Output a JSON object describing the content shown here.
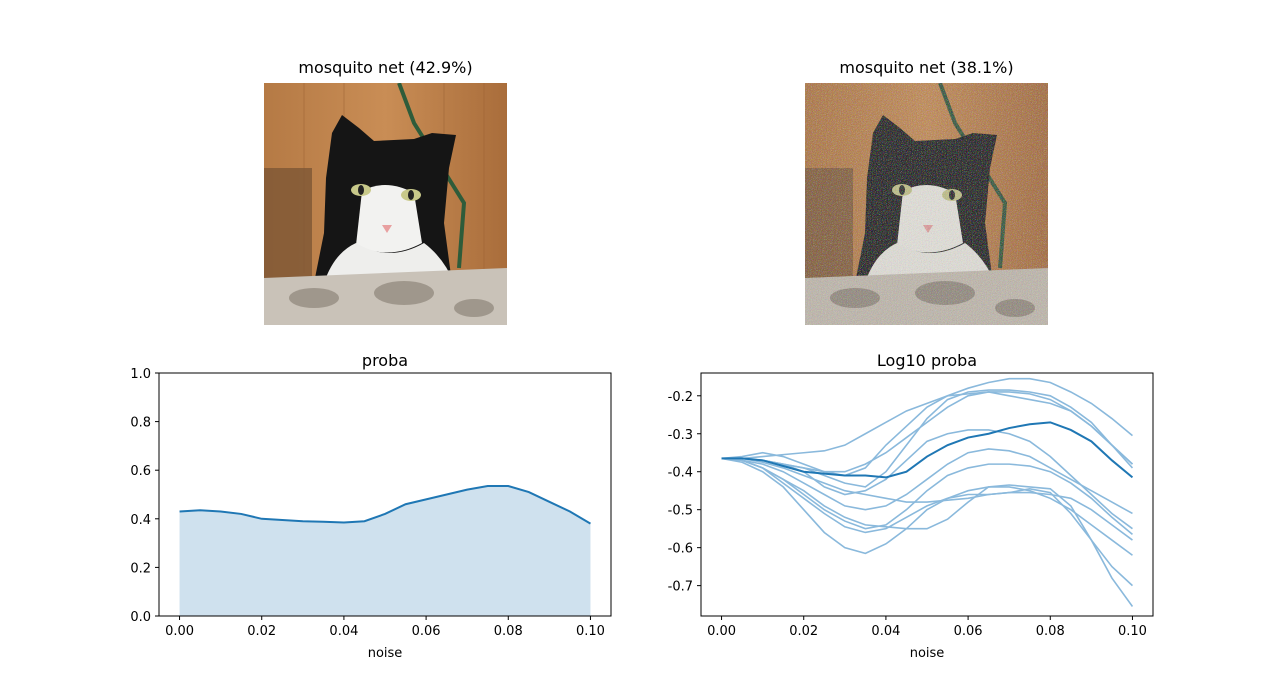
{
  "images": [
    {
      "title": "mosquito net (42.9%)",
      "noisy": false
    },
    {
      "title": "mosquito net (38.1%)",
      "noisy": true
    }
  ],
  "colors": {
    "line": "#1f77b4",
    "fill": "#cfe1ee",
    "light_line": "#8ab9dc"
  },
  "chart_data": [
    {
      "type": "area",
      "title": "proba",
      "xlabel": "noise",
      "ylabel": "",
      "xlim": [
        -0.005,
        0.105
      ],
      "ylim": [
        0.0,
        1.0
      ],
      "xticks": [
        "0.00",
        "0.02",
        "0.04",
        "0.06",
        "0.08",
        "0.10"
      ],
      "yticks": [
        "0.0",
        "0.2",
        "0.4",
        "0.6",
        "0.8",
        "1.0"
      ],
      "x": [
        0.0,
        0.005,
        0.01,
        0.015,
        0.02,
        0.025,
        0.03,
        0.035,
        0.04,
        0.045,
        0.05,
        0.055,
        0.06,
        0.065,
        0.07,
        0.075,
        0.08,
        0.085,
        0.09,
        0.095,
        0.1
      ],
      "series": [
        {
          "values": [
            0.43,
            0.435,
            0.43,
            0.42,
            0.4,
            0.395,
            0.39,
            0.388,
            0.385,
            0.39,
            0.42,
            0.46,
            0.48,
            0.5,
            0.52,
            0.535,
            0.535,
            0.51,
            0.47,
            0.43,
            0.38
          ]
        }
      ]
    },
    {
      "type": "line",
      "title": "Log10 proba",
      "xlabel": "noise",
      "ylabel": "",
      "xlim": [
        -0.005,
        0.105
      ],
      "ylim": [
        -0.78,
        -0.14
      ],
      "xticks": [
        "0.00",
        "0.02",
        "0.04",
        "0.06",
        "0.08",
        "0.10"
      ],
      "yticks": [
        "-0.2",
        "-0.3",
        "-0.4",
        "-0.5",
        "-0.6",
        "-0.7"
      ],
      "x": [
        0.0,
        0.005,
        0.01,
        0.015,
        0.02,
        0.025,
        0.03,
        0.035,
        0.04,
        0.045,
        0.05,
        0.055,
        0.06,
        0.065,
        0.07,
        0.075,
        0.08,
        0.085,
        0.09,
        0.095,
        0.1
      ],
      "mean": [
        -0.365,
        -0.365,
        -0.37,
        -0.385,
        -0.4,
        -0.405,
        -0.41,
        -0.41,
        -0.415,
        -0.4,
        -0.36,
        -0.33,
        -0.31,
        -0.3,
        -0.285,
        -0.275,
        -0.27,
        -0.29,
        -0.32,
        -0.37,
        -0.415
      ],
      "series": [
        {
          "values": [
            -0.365,
            -0.36,
            -0.35,
            -0.36,
            -0.38,
            -0.4,
            -0.41,
            -0.39,
            -0.33,
            -0.28,
            -0.23,
            -0.2,
            -0.18,
            -0.165,
            -0.155,
            -0.155,
            -0.165,
            -0.19,
            -0.22,
            -0.26,
            -0.305
          ]
        },
        {
          "values": [
            -0.365,
            -0.365,
            -0.37,
            -0.38,
            -0.39,
            -0.41,
            -0.43,
            -0.44,
            -0.4,
            -0.33,
            -0.26,
            -0.21,
            -0.19,
            -0.185,
            -0.185,
            -0.19,
            -0.2,
            -0.23,
            -0.27,
            -0.33,
            -0.38
          ]
        },
        {
          "values": [
            -0.365,
            -0.365,
            -0.36,
            -0.355,
            -0.35,
            -0.345,
            -0.33,
            -0.3,
            -0.27,
            -0.24,
            -0.22,
            -0.2,
            -0.195,
            -0.19,
            -0.19,
            -0.195,
            -0.21,
            -0.24,
            -0.28,
            -0.33,
            -0.39
          ]
        },
        {
          "values": [
            -0.365,
            -0.365,
            -0.37,
            -0.38,
            -0.39,
            -0.4,
            -0.4,
            -0.38,
            -0.35,
            -0.31,
            -0.27,
            -0.23,
            -0.2,
            -0.19,
            -0.2,
            -0.21,
            -0.22,
            -0.24,
            -0.28,
            -0.33,
            -0.38
          ]
        },
        {
          "values": [
            -0.365,
            -0.365,
            -0.37,
            -0.38,
            -0.4,
            -0.44,
            -0.46,
            -0.45,
            -0.42,
            -0.37,
            -0.32,
            -0.3,
            -0.29,
            -0.29,
            -0.3,
            -0.32,
            -0.36,
            -0.41,
            -0.46,
            -0.51,
            -0.55
          ]
        },
        {
          "values": [
            -0.365,
            -0.37,
            -0.38,
            -0.4,
            -0.43,
            -0.46,
            -0.49,
            -0.5,
            -0.49,
            -0.46,
            -0.42,
            -0.38,
            -0.35,
            -0.34,
            -0.345,
            -0.36,
            -0.39,
            -0.42,
            -0.45,
            -0.48,
            -0.51
          ]
        },
        {
          "values": [
            -0.365,
            -0.37,
            -0.39,
            -0.42,
            -0.46,
            -0.5,
            -0.53,
            -0.55,
            -0.54,
            -0.5,
            -0.45,
            -0.41,
            -0.39,
            -0.38,
            -0.38,
            -0.385,
            -0.4,
            -0.43,
            -0.47,
            -0.52,
            -0.565
          ]
        },
        {
          "values": [
            -0.365,
            -0.375,
            -0.4,
            -0.44,
            -0.5,
            -0.56,
            -0.6,
            -0.615,
            -0.59,
            -0.55,
            -0.5,
            -0.47,
            -0.45,
            -0.44,
            -0.44,
            -0.45,
            -0.47,
            -0.5,
            -0.54,
            -0.58,
            -0.62
          ]
        },
        {
          "values": [
            -0.365,
            -0.37,
            -0.39,
            -0.43,
            -0.47,
            -0.51,
            -0.545,
            -0.56,
            -0.55,
            -0.52,
            -0.49,
            -0.47,
            -0.46,
            -0.46,
            -0.455,
            -0.445,
            -0.455,
            -0.51,
            -0.58,
            -0.65,
            -0.7
          ]
        },
        {
          "values": [
            -0.365,
            -0.37,
            -0.39,
            -0.42,
            -0.45,
            -0.49,
            -0.52,
            -0.54,
            -0.545,
            -0.55,
            -0.55,
            -0.525,
            -0.48,
            -0.44,
            -0.435,
            -0.44,
            -0.445,
            -0.49,
            -0.58,
            -0.68,
            -0.755
          ]
        },
        {
          "values": [
            -0.365,
            -0.365,
            -0.375,
            -0.39,
            -0.41,
            -0.43,
            -0.45,
            -0.46,
            -0.47,
            -0.48,
            -0.48,
            -0.475,
            -0.47,
            -0.46,
            -0.455,
            -0.455,
            -0.46,
            -0.47,
            -0.5,
            -0.54,
            -0.58
          ]
        }
      ]
    }
  ]
}
